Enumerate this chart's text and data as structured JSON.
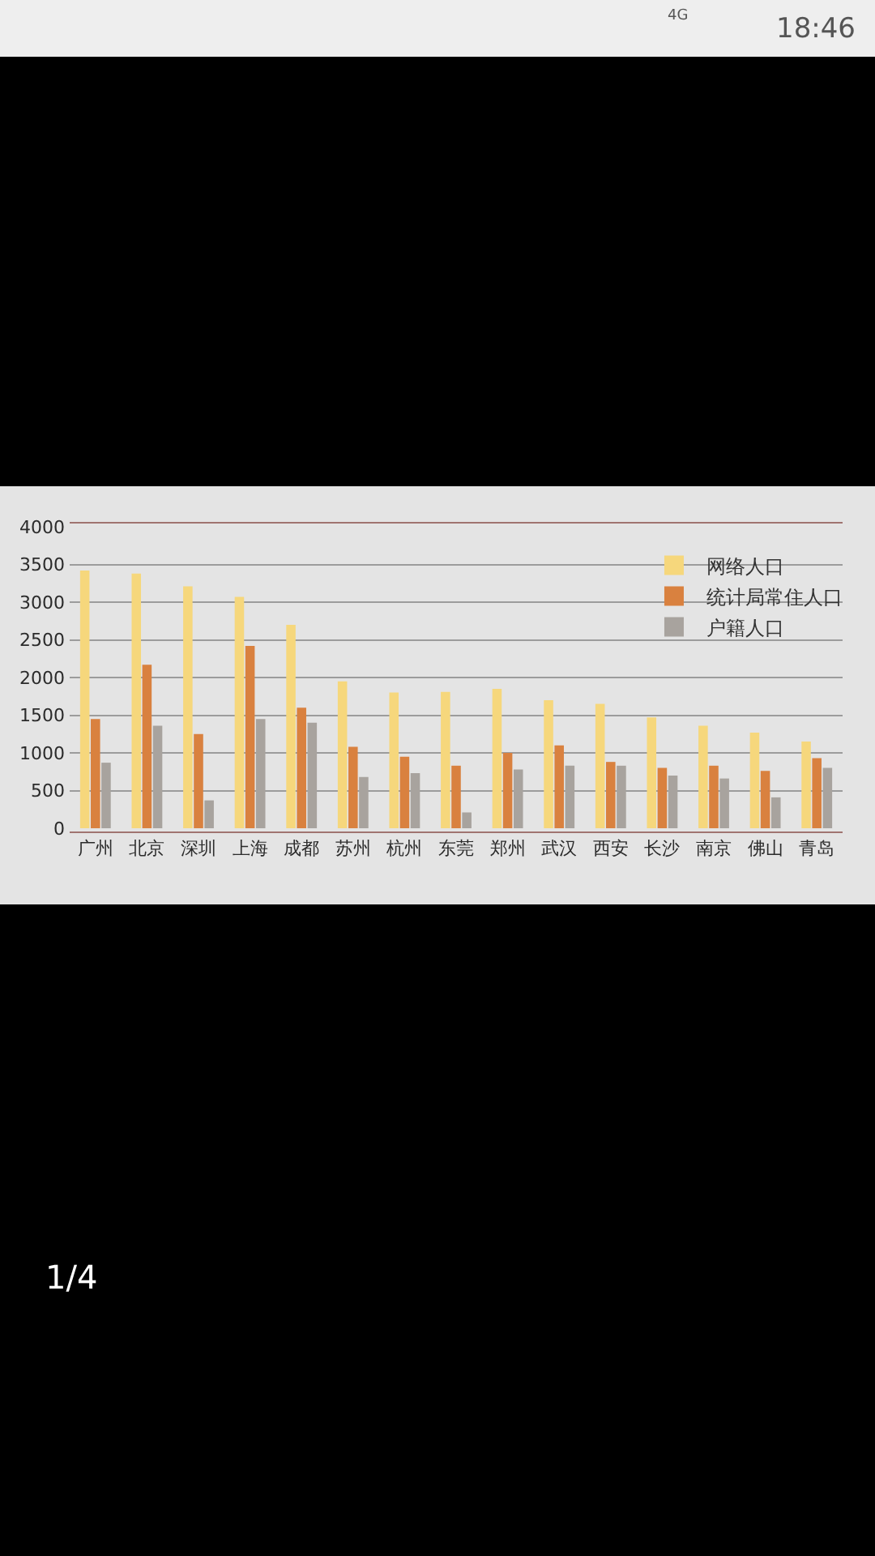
{
  "chart_data": {
    "type": "bar",
    "categories": [
      "广州",
      "北京",
      "深圳",
      "上海",
      "成都",
      "苏州",
      "杭州",
      "东莞",
      "郑州",
      "武汉",
      "西安",
      "长沙",
      "南京",
      "佛山",
      "青岛"
    ],
    "series": [
      {
        "name": "网络人口",
        "color": "#f6d77c",
        "values": [
          3420,
          3380,
          3210,
          3070,
          2700,
          1950,
          1800,
          1810,
          1850,
          1700,
          1650,
          1470,
          1360,
          1270,
          1150
        ]
      },
      {
        "name": "统计局常住人口",
        "color": "#d9813f",
        "values": [
          1450,
          2170,
          1250,
          2420,
          1600,
          1080,
          950,
          830,
          1000,
          1100,
          880,
          800,
          830,
          760,
          930
        ]
      },
      {
        "name": "户籍人口",
        "color": "#a8a39e",
        "values": [
          870,
          1360,
          370,
          1450,
          1400,
          680,
          730,
          210,
          780,
          830,
          830,
          700,
          660,
          410,
          800
        ]
      }
    ],
    "ylim": [
      0,
      4000
    ],
    "yticks": [
      0,
      500,
      1000,
      1500,
      2000,
      2500,
      3000,
      3500,
      4000
    ],
    "grid": "y",
    "legend": "top right",
    "annotations": [
      "18:46",
      "4G",
      "1/4"
    ]
  }
}
